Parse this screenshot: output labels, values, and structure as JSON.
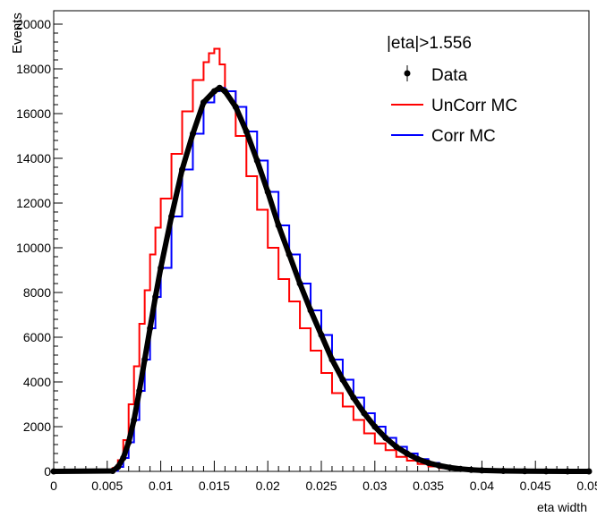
{
  "chart_data": {
    "type": "line",
    "legend_title": "|eta|>1.556",
    "legend_position": "top-right",
    "xlabel": "eta width",
    "ylabel": "Events",
    "xlim": [
      0,
      0.05
    ],
    "ylim": [
      0,
      20600
    ],
    "grid": false,
    "x_ticks": [
      "0",
      "0.005",
      "0.01",
      "0.015",
      "0.02",
      "0.025",
      "0.03",
      "0.035",
      "0.04",
      "0.045",
      "0.05"
    ],
    "y_ticks": [
      "0",
      "2000",
      "4000",
      "6000",
      "8000",
      "10000",
      "12000",
      "14000",
      "16000",
      "18000",
      "20000"
    ],
    "series": [
      {
        "name": "Data",
        "style": "markers",
        "color": "#000000",
        "x": [
          0,
          0.0055,
          0.006,
          0.0065,
          0.007,
          0.0075,
          0.008,
          0.0085,
          0.009,
          0.0095,
          0.01,
          0.011,
          0.012,
          0.013,
          0.014,
          0.015,
          0.0155,
          0.016,
          0.017,
          0.018,
          0.019,
          0.02,
          0.021,
          0.022,
          0.023,
          0.024,
          0.025,
          0.026,
          0.027,
          0.028,
          0.029,
          0.03,
          0.031,
          0.032,
          0.033,
          0.034,
          0.035,
          0.036,
          0.037,
          0.038,
          0.039,
          0.04,
          0.042,
          0.044,
          0.046,
          0.048,
          0.05
        ],
        "y": [
          0,
          20,
          200,
          600,
          1300,
          2300,
          3600,
          5000,
          6400,
          7800,
          9100,
          11400,
          13500,
          15100,
          16500,
          17000,
          17150,
          17000,
          16300,
          15200,
          13900,
          12500,
          11000,
          9700,
          8400,
          7200,
          6100,
          5000,
          4100,
          3300,
          2600,
          2000,
          1500,
          1100,
          800,
          550,
          380,
          260,
          170,
          110,
          70,
          45,
          20,
          10,
          5,
          2,
          0
        ]
      },
      {
        "name": "UnCorr MC",
        "style": "step",
        "color": "#ff0000",
        "x": [
          0,
          0.005,
          0.0055,
          0.006,
          0.0065,
          0.007,
          0.0075,
          0.008,
          0.0085,
          0.009,
          0.0095,
          0.01,
          0.011,
          0.012,
          0.013,
          0.014,
          0.0145,
          0.015,
          0.0155,
          0.016,
          0.017,
          0.018,
          0.019,
          0.02,
          0.021,
          0.022,
          0.023,
          0.024,
          0.025,
          0.026,
          0.027,
          0.028,
          0.029,
          0.03,
          0.031,
          0.032,
          0.033,
          0.034,
          0.035,
          0.036,
          0.037,
          0.038,
          0.04,
          0.042,
          0.045,
          0.05
        ],
        "y": [
          0,
          30,
          150,
          500,
          1400,
          3000,
          4700,
          6600,
          8100,
          9700,
          10900,
          12200,
          14200,
          16100,
          17500,
          18300,
          18700,
          18900,
          18200,
          17000,
          15000,
          13200,
          11700,
          10000,
          8600,
          7600,
          6400,
          5400,
          4400,
          3500,
          2900,
          2300,
          1700,
          1250,
          950,
          650,
          480,
          330,
          220,
          150,
          100,
          60,
          30,
          15,
          5,
          0
        ]
      },
      {
        "name": "Corr MC",
        "style": "step",
        "color": "#0000ff",
        "x": [
          0,
          0.0055,
          0.006,
          0.0065,
          0.007,
          0.0075,
          0.008,
          0.0085,
          0.009,
          0.0095,
          0.01,
          0.011,
          0.012,
          0.013,
          0.014,
          0.015,
          0.0155,
          0.016,
          0.017,
          0.018,
          0.019,
          0.02,
          0.021,
          0.022,
          0.023,
          0.024,
          0.025,
          0.026,
          0.027,
          0.028,
          0.029,
          0.03,
          0.031,
          0.032,
          0.033,
          0.034,
          0.035,
          0.036,
          0.037,
          0.038,
          0.039,
          0.04,
          0.042,
          0.044,
          0.046,
          0.048,
          0.05
        ],
        "y": [
          0,
          20,
          200,
          600,
          1300,
          2300,
          3600,
          5000,
          6400,
          7800,
          9100,
          11400,
          13500,
          15100,
          16500,
          17000,
          17150,
          17000,
          16300,
          15200,
          13900,
          12500,
          11000,
          9700,
          8400,
          7200,
          6100,
          5000,
          4100,
          3300,
          2600,
          2000,
          1500,
          1100,
          800,
          550,
          380,
          260,
          170,
          110,
          70,
          45,
          20,
          10,
          5,
          2,
          0
        ]
      }
    ]
  }
}
